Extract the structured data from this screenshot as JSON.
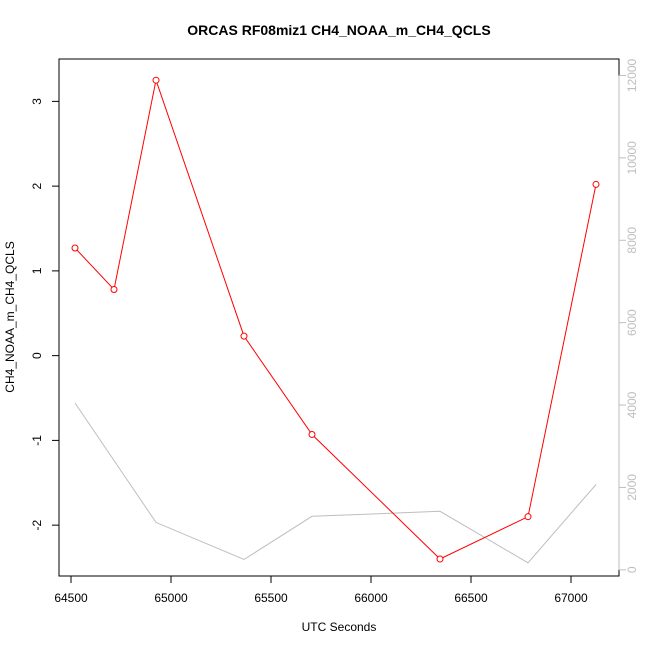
{
  "chart_data": {
    "type": "line",
    "title": "ORCAS RF08miz1 CH4_NOAA_m_CH4_QCLS",
    "xlabel": "UTC Seconds",
    "ylabel": "CH4_NOAA_m_CH4_QCLS",
    "xlim": [
      64440,
      67240
    ],
    "ylim": [
      -2.6,
      3.5
    ],
    "ylim_right": [
      -150,
      12400
    ],
    "x_ticks": [
      64500,
      65000,
      65500,
      66000,
      66500,
      67000
    ],
    "y_ticks": [
      -2,
      -1,
      0,
      1,
      2,
      3
    ],
    "y_ticks_right": [
      0,
      2000,
      4000,
      6000,
      8000,
      10000,
      12000
    ],
    "grid": false,
    "series": [
      {
        "axis": "left",
        "color": "#ff0000",
        "marker": "open-circle",
        "x": [
          64520,
          64715,
          64925,
          65365,
          65705,
          66345,
          66785,
          67125
        ],
        "y": [
          1.27,
          0.78,
          3.25,
          0.23,
          -0.93,
          -2.4,
          -1.9,
          2.02
        ]
      },
      {
        "axis": "right",
        "color": "#bebebe",
        "marker": "none",
        "x": [
          64520,
          64925,
          65365,
          65705,
          66345,
          66785,
          67125
        ],
        "y": [
          4050,
          1150,
          250,
          1300,
          1420,
          170,
          2070
        ]
      }
    ]
  }
}
